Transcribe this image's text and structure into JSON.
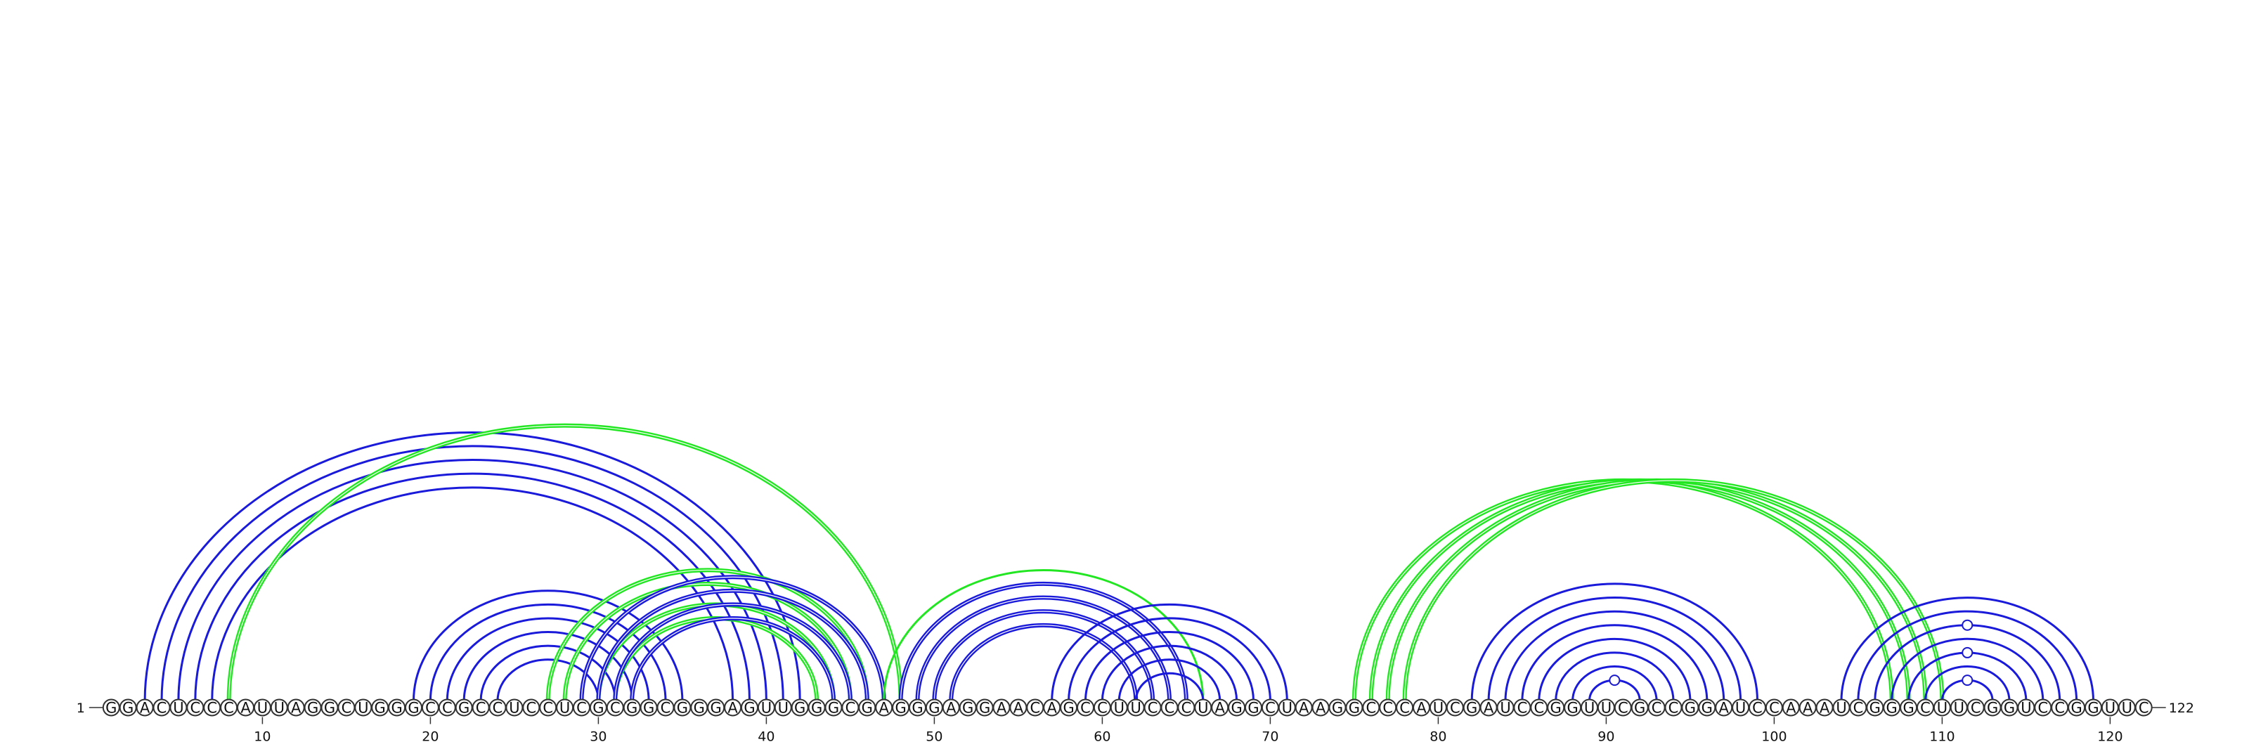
{
  "sequence": "GGACUCCCAUUAGGCUGGGCCGCCUCCUCGCGGCGGGAGUUGGGCGAGGGAGGAACAGCCUUCCCUAGGCUAAGGCCCAUCGAUCCGGUUCGCCGGAUCCAAAUCGGGCUUCGGUCCGGUUC",
  "start_label": "1",
  "end_label": "122",
  "ticks": [
    10,
    20,
    30,
    40,
    50,
    60,
    70,
    80,
    90,
    100,
    110,
    120
  ],
  "colors": {
    "blue": "#1a1adb",
    "green": "#22e622"
  },
  "arc_groups": [
    {
      "color": "blue",
      "thickness": 1,
      "pairs": [
        [
          3,
          42
        ],
        [
          4,
          41
        ],
        [
          5,
          40
        ],
        [
          6,
          39
        ],
        [
          7,
          38
        ]
      ]
    },
    {
      "color": "green",
      "thickness": 2,
      "pairs": [
        [
          8,
          48
        ]
      ]
    },
    {
      "color": "blue",
      "thickness": 1,
      "pairs": [
        [
          19,
          35
        ],
        [
          20,
          34
        ],
        [
          21,
          33
        ],
        [
          22,
          32
        ],
        [
          23,
          31
        ],
        [
          24,
          30
        ]
      ]
    },
    {
      "color": "green",
      "thickness": 2,
      "pairs": [
        [
          27,
          46
        ],
        [
          28,
          45
        ],
        [
          30,
          44
        ],
        [
          31,
          43
        ]
      ]
    },
    {
      "color": "blue",
      "thickness": 2,
      "pairs": [
        [
          29,
          47
        ],
        [
          30,
          46
        ],
        [
          31,
          45
        ],
        [
          32,
          44
        ]
      ]
    },
    {
      "color": "green",
      "thickness": 1,
      "pairs": [
        [
          47,
          66
        ]
      ]
    },
    {
      "color": "blue",
      "thickness": 2,
      "pairs": [
        [
          48,
          65
        ],
        [
          49,
          64
        ],
        [
          50,
          63
        ],
        [
          51,
          62
        ]
      ]
    },
    {
      "color": "blue",
      "thickness": 1,
      "pairs": [
        [
          57,
          71
        ],
        [
          58,
          70
        ],
        [
          59,
          69
        ],
        [
          60,
          68
        ],
        [
          61,
          67
        ],
        [
          62,
          66
        ]
      ]
    },
    {
      "color": "green",
      "thickness": 2,
      "pairs": [
        [
          75,
          107
        ],
        [
          76,
          108
        ],
        [
          77,
          109
        ],
        [
          78,
          110
        ]
      ]
    },
    {
      "color": "blue",
      "thickness": 1,
      "pairs": [
        [
          82,
          99
        ],
        [
          83,
          98
        ],
        [
          84,
          97
        ],
        [
          85,
          96
        ],
        [
          86,
          95
        ],
        [
          87,
          94
        ],
        [
          88,
          93
        ],
        [
          89,
          92
        ]
      ]
    },
    {
      "color": "blue",
      "thickness": 1,
      "pairs": [
        [
          104,
          119
        ],
        [
          105,
          118
        ],
        [
          106,
          117
        ],
        [
          107,
          116
        ],
        [
          108,
          115
        ],
        [
          109,
          114
        ],
        [
          110,
          113
        ]
      ]
    }
  ],
  "annotations": [
    {
      "pos": 90.5,
      "arc_index": 0
    },
    {
      "pos": 111.5,
      "arc_index": 0
    },
    {
      "pos": 111.5,
      "arc_index": 2
    },
    {
      "pos": 111.5,
      "arc_index": 4
    }
  ]
}
